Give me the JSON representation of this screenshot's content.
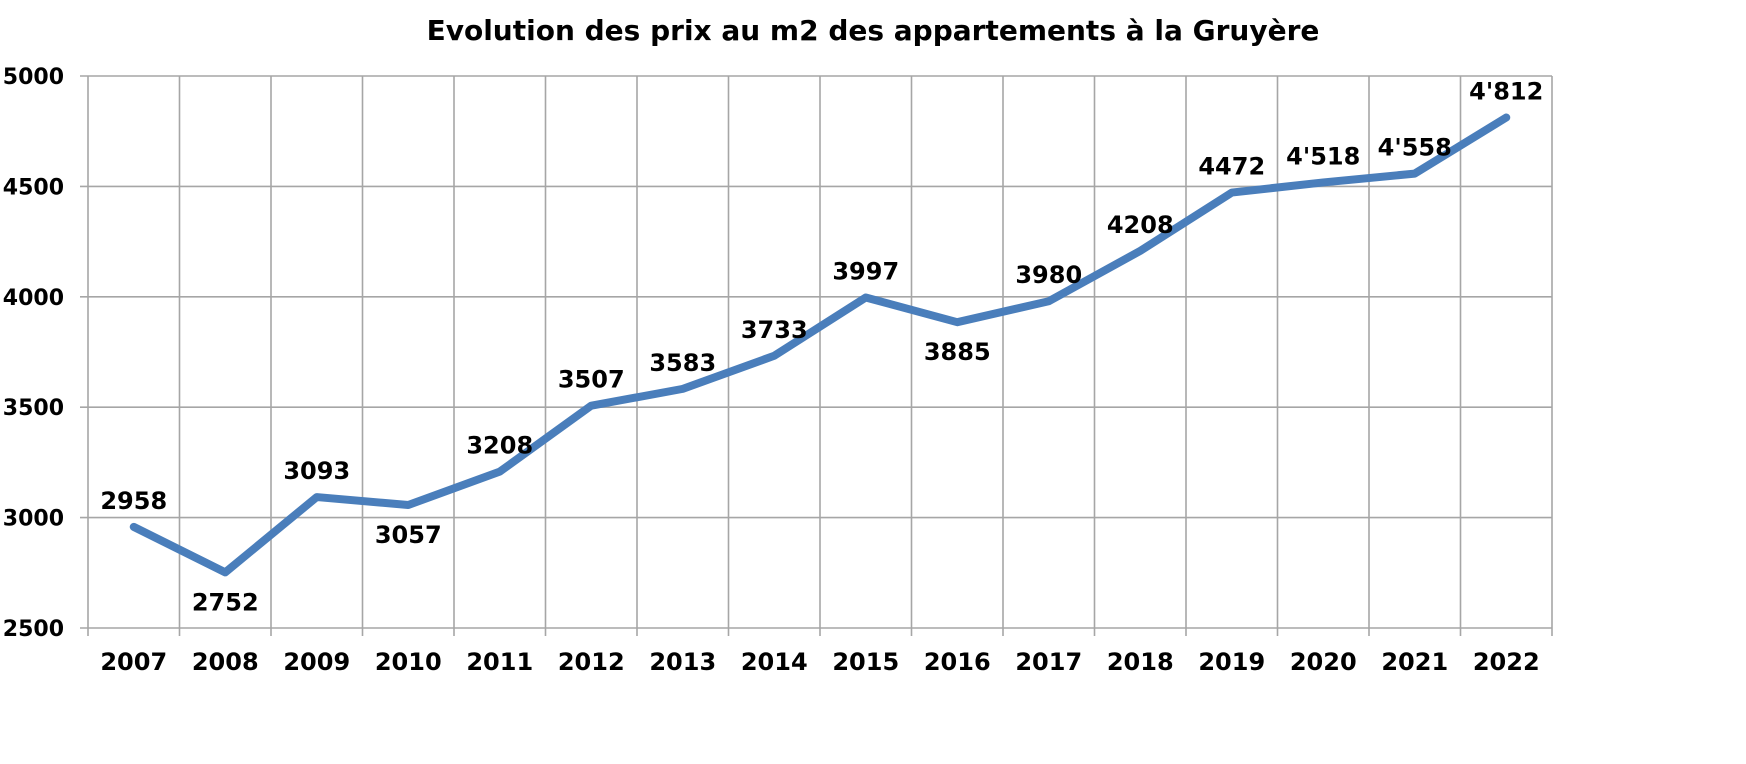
{
  "chart_data": {
    "type": "line",
    "title": "Evolution des prix au m2 des appartements à la Gruyère",
    "xlabel": "",
    "ylabel": "",
    "categories": [
      "2007",
      "2008",
      "2009",
      "2010",
      "2011",
      "2012",
      "2013",
      "2014",
      "2015",
      "2016",
      "2017",
      "2018",
      "2019",
      "2020",
      "2021",
      "2022"
    ],
    "values": [
      2958,
      2752,
      3093,
      3057,
      3208,
      3507,
      3583,
      3733,
      3997,
      3885,
      3980,
      4208,
      4472,
      4518,
      4558,
      4812
    ],
    "data_labels": [
      "2958",
      "2752",
      "3093",
      "3057",
      "3208",
      "3507",
      "3583",
      "3733",
      "3997",
      "3885",
      "3980",
      "4208",
      "4472",
      "4'518",
      "4'558",
      "4'812"
    ],
    "label_positions": [
      "above",
      "below",
      "above",
      "below",
      "above",
      "above",
      "above",
      "above",
      "above",
      "below",
      "above",
      "above",
      "above",
      "above",
      "above",
      "above"
    ],
    "ylim": [
      2500,
      5000
    ],
    "yticks": [
      "2500",
      "3000",
      "3500",
      "4000",
      "4500",
      "5000"
    ],
    "grid": true,
    "legend": "none",
    "line_color": "#4a7ebb"
  }
}
